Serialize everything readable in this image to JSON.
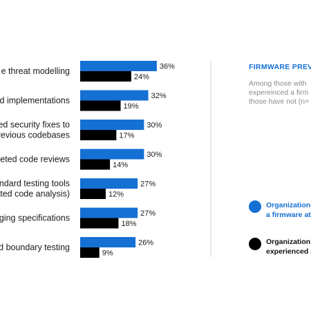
{
  "chart_data": {
    "type": "bar",
    "orientation": "horizontal",
    "categories": [
      [
        "e threat modelling"
      ],
      [
        "d implementations"
      ],
      [
        "ed security fixes to",
        "revious codebases"
      ],
      [
        "geted code reviews"
      ],
      [
        "ndard testing tools",
        "ated code analysis)"
      ],
      [
        "ging specifications"
      ],
      [
        "d boundary testing"
      ]
    ],
    "series": [
      {
        "color": "#1570d4",
        "values": [
          36,
          32,
          30,
          30,
          27,
          27,
          26
        ],
        "labels": [
          "36%",
          "32%",
          "30%",
          "30%",
          "27%",
          "27%",
          "26%"
        ]
      },
      {
        "color": "#000000",
        "values": [
          24,
          19,
          17,
          14,
          12,
          18,
          9
        ],
        "labels": [
          "24%",
          "19%",
          "17%",
          "14%",
          "12%",
          "18%",
          "9%"
        ]
      }
    ],
    "value_unit": "%",
    "grid": false
  },
  "side_panel": {
    "title": "FIRMWARE PREVE",
    "description": [
      "Among those with",
      "expereinced a firm",
      "those have not (n="
    ]
  },
  "legend": {
    "blue_label": [
      "Organization",
      "a firmware at"
    ],
    "black_label": [
      "Organization",
      "experienced a"
    ]
  }
}
